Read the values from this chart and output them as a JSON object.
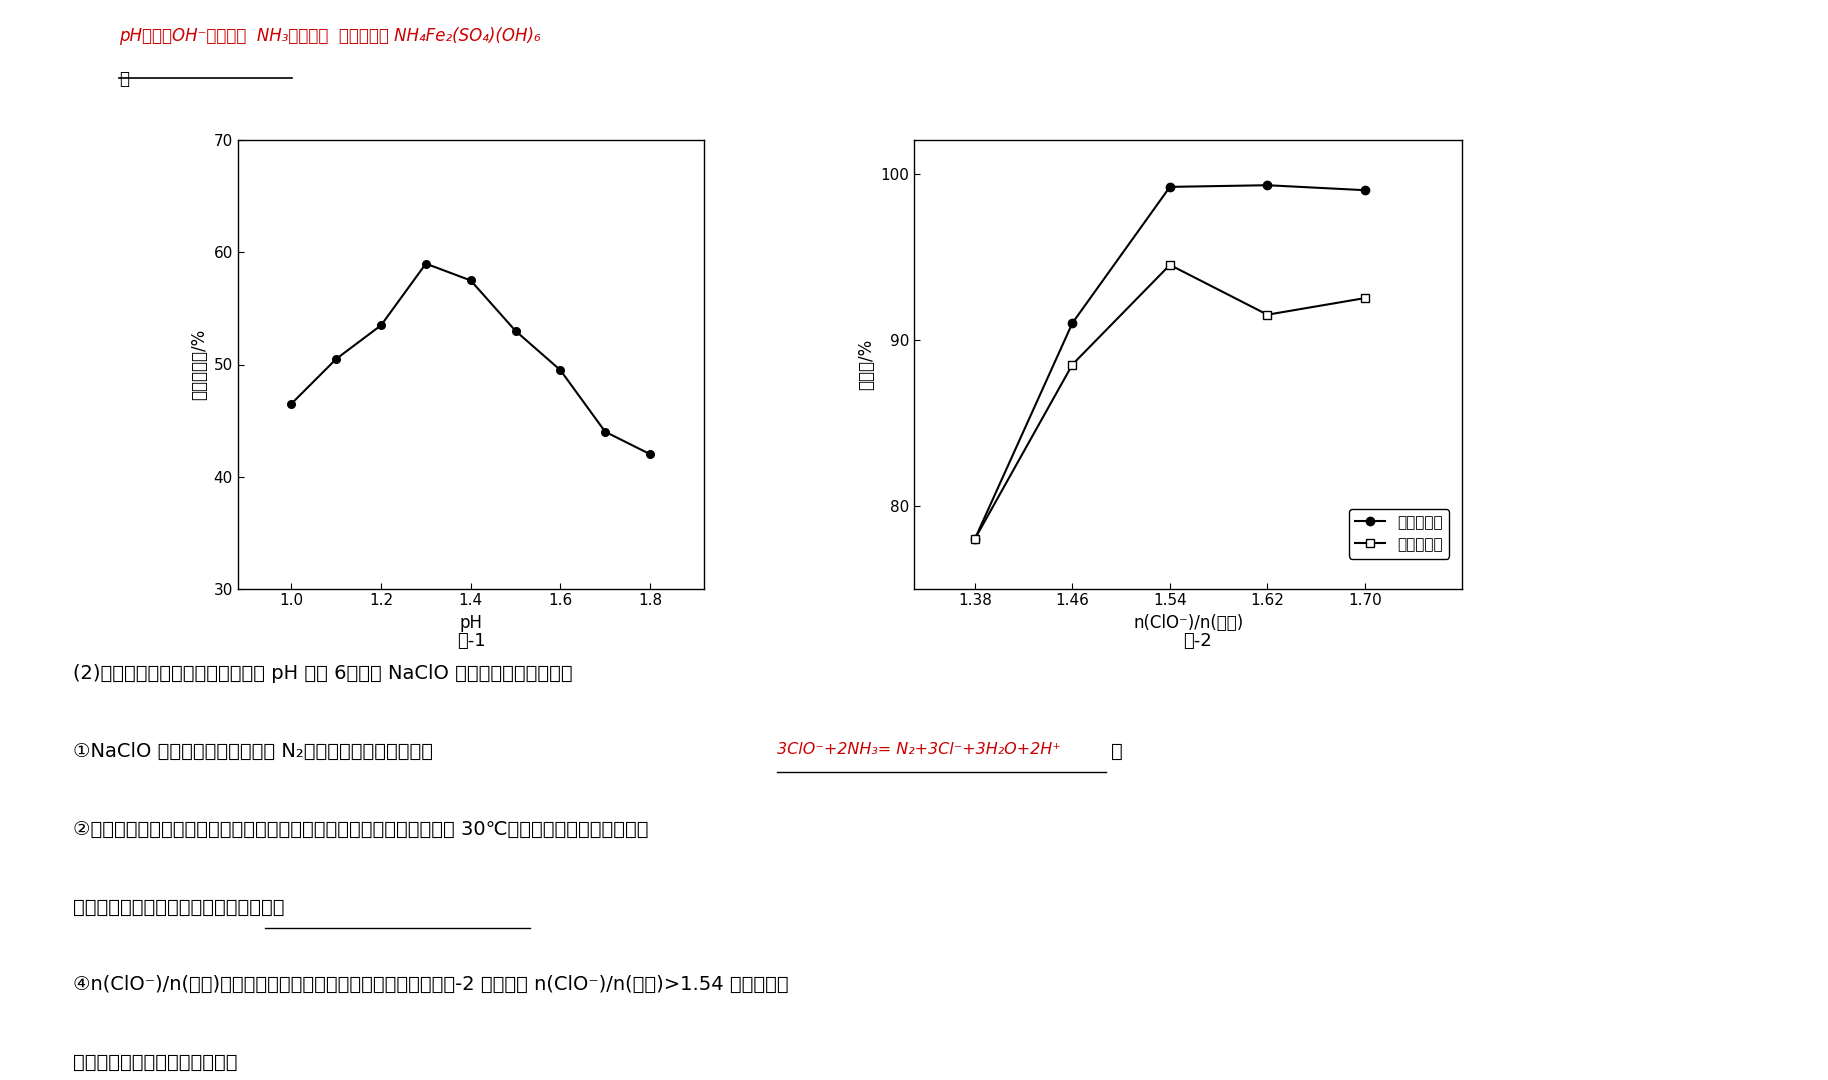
{
  "fig1": {
    "xlabel": "pH",
    "ylabel": "氨氮去除率/%",
    "title": "图-1",
    "x": [
      1.0,
      1.1,
      1.2,
      1.3,
      1.4,
      1.5,
      1.6,
      1.7,
      1.8
    ],
    "y": [
      46.5,
      50.5,
      53.5,
      59.0,
      57.5,
      53.0,
      49.5,
      44.0,
      42.0
    ],
    "ylim": [
      30,
      70
    ],
    "yticks": [
      30,
      40,
      50,
      60,
      70
    ],
    "xlim": [
      0.88,
      1.92
    ],
    "xticks": [
      1.0,
      1.2,
      1.4,
      1.6,
      1.8
    ]
  },
  "fig2": {
    "xlabel": "n(ClO⁻)/n(氨氮)",
    "ylabel": "去除率/%",
    "title": "图-2",
    "x_ammonia": [
      1.38,
      1.46,
      1.54,
      1.62,
      1.7
    ],
    "y_ammonia": [
      78.0,
      91.0,
      99.2,
      99.3,
      99.0
    ],
    "x_total": [
      1.38,
      1.46,
      1.54,
      1.62,
      1.7
    ],
    "y_total": [
      78.0,
      88.5,
      94.5,
      91.5,
      92.5
    ],
    "ylim": [
      75,
      102
    ],
    "yticks": [
      80,
      90,
      100
    ],
    "xlim": [
      1.33,
      1.78
    ],
    "xticks": [
      1.38,
      1.46,
      1.54,
      1.62,
      1.7
    ],
    "legend_ammonia": "氨氮去除率",
    "legend_total": "总氮去除率"
  },
  "top_red_text": "pH升高，OH⁻浓度增大  NH₃浓度下降  不利于生成 NH₄Fe₂(SO₄)(OH)₆",
  "top_underline_text": "。",
  "body_line0": "(2)氧化：调节经沉淠处理后的废水 pH 约为 6，加入 NaClO 溶液进一步氧化处理。",
  "body_line1_pre": "①NaClO 将废水中的氨氮转化为 N₂，该反应的离子方程式为",
  "body_line1_red": "3ClO⁻+2NH₃= N₂+3Cl⁻+3H₂O+2H⁺",
  "body_line1_post": "。",
  "body_line2": "②研究发现，废水中氨氮去除率随温度升高呈先升后降趋势。当温度大于 30℃时，废水中氨氮去除率随着",
  "body_line3": "温度升高而降低，其原因是　　　　　。",
  "body_line4": "④n(ClO⁻)/n(氨氮)对废水中氨氮去除率和总氮去除率的影响如图-2 所示。当 n(ClO⁻)/n(氨氮)>1.54 后，总氮去",
  "body_line5": "除率下降的原因是　　　　　。",
  "background": "#ffffff",
  "text_color": "#000000",
  "red_color": "#cc0000"
}
